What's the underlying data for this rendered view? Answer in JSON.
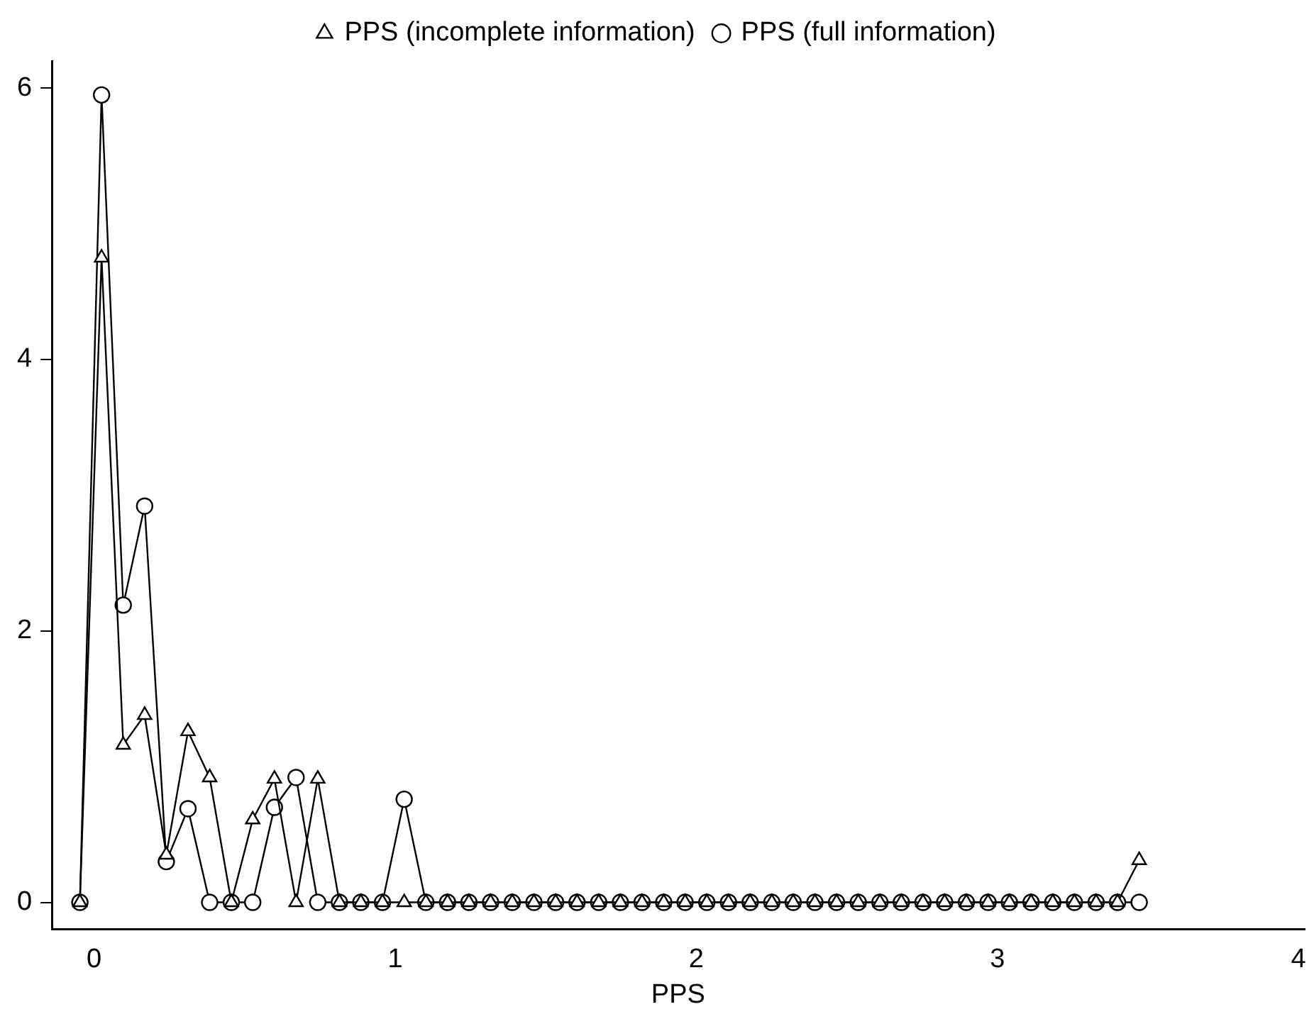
{
  "chart_data": {
    "type": "line",
    "xlabel": "PPS",
    "x": [
      -0.047,
      0.025,
      0.097,
      0.168,
      0.24,
      0.312,
      0.384,
      0.456,
      0.527,
      0.599,
      0.671,
      0.743,
      0.815,
      0.886,
      0.958,
      1.03,
      1.102,
      1.174,
      1.245,
      1.317,
      1.389,
      1.461,
      1.533,
      1.604,
      1.676,
      1.748,
      1.82,
      1.892,
      1.963,
      2.035,
      2.107,
      2.179,
      2.251,
      2.322,
      2.394,
      2.466,
      2.538,
      2.61,
      2.681,
      2.753,
      2.825,
      2.897,
      2.969,
      3.04,
      3.112,
      3.184,
      3.256,
      3.328,
      3.399,
      3.471
    ],
    "series": [
      {
        "name": "PPS (full information)",
        "color": "#000000",
        "marker": "circle",
        "values": [
          0,
          5.95,
          2.19,
          2.92,
          0.3,
          0.69,
          0,
          0,
          0,
          0.7,
          0.92,
          0,
          0,
          0,
          0,
          0.76,
          0,
          0,
          0,
          0,
          0,
          0,
          0,
          0,
          0,
          0,
          0,
          0,
          0,
          0,
          0,
          0,
          0,
          0,
          0,
          0,
          0,
          0,
          0,
          0,
          0,
          0,
          0,
          0,
          0,
          0,
          0,
          0,
          0,
          0
        ]
      },
      {
        "name": "PPS (incomplete information)",
        "color": "#000000",
        "marker": "triangle",
        "values": [
          0,
          4.75,
          1.16,
          1.38,
          0.35,
          1.26,
          0.92,
          0,
          0.61,
          0.91,
          0,
          0.91,
          0,
          0,
          0,
          0,
          0,
          0,
          0,
          0,
          0,
          0,
          0,
          0,
          0,
          0,
          0,
          0,
          0,
          0,
          0,
          0,
          0,
          0,
          0,
          0,
          0,
          0,
          0,
          0,
          0,
          0,
          0,
          0,
          0,
          0,
          0,
          0,
          0,
          0.31
        ]
      }
    ],
    "xlim": [
      -0.14,
      4.02
    ],
    "xticks": [
      0,
      1,
      2,
      3,
      4
    ],
    "ylim": [
      -0.2,
      6.2
    ],
    "yticks": [
      0,
      2,
      4,
      6
    ],
    "grid": false,
    "legend": "top",
    "line_style": "solid"
  }
}
